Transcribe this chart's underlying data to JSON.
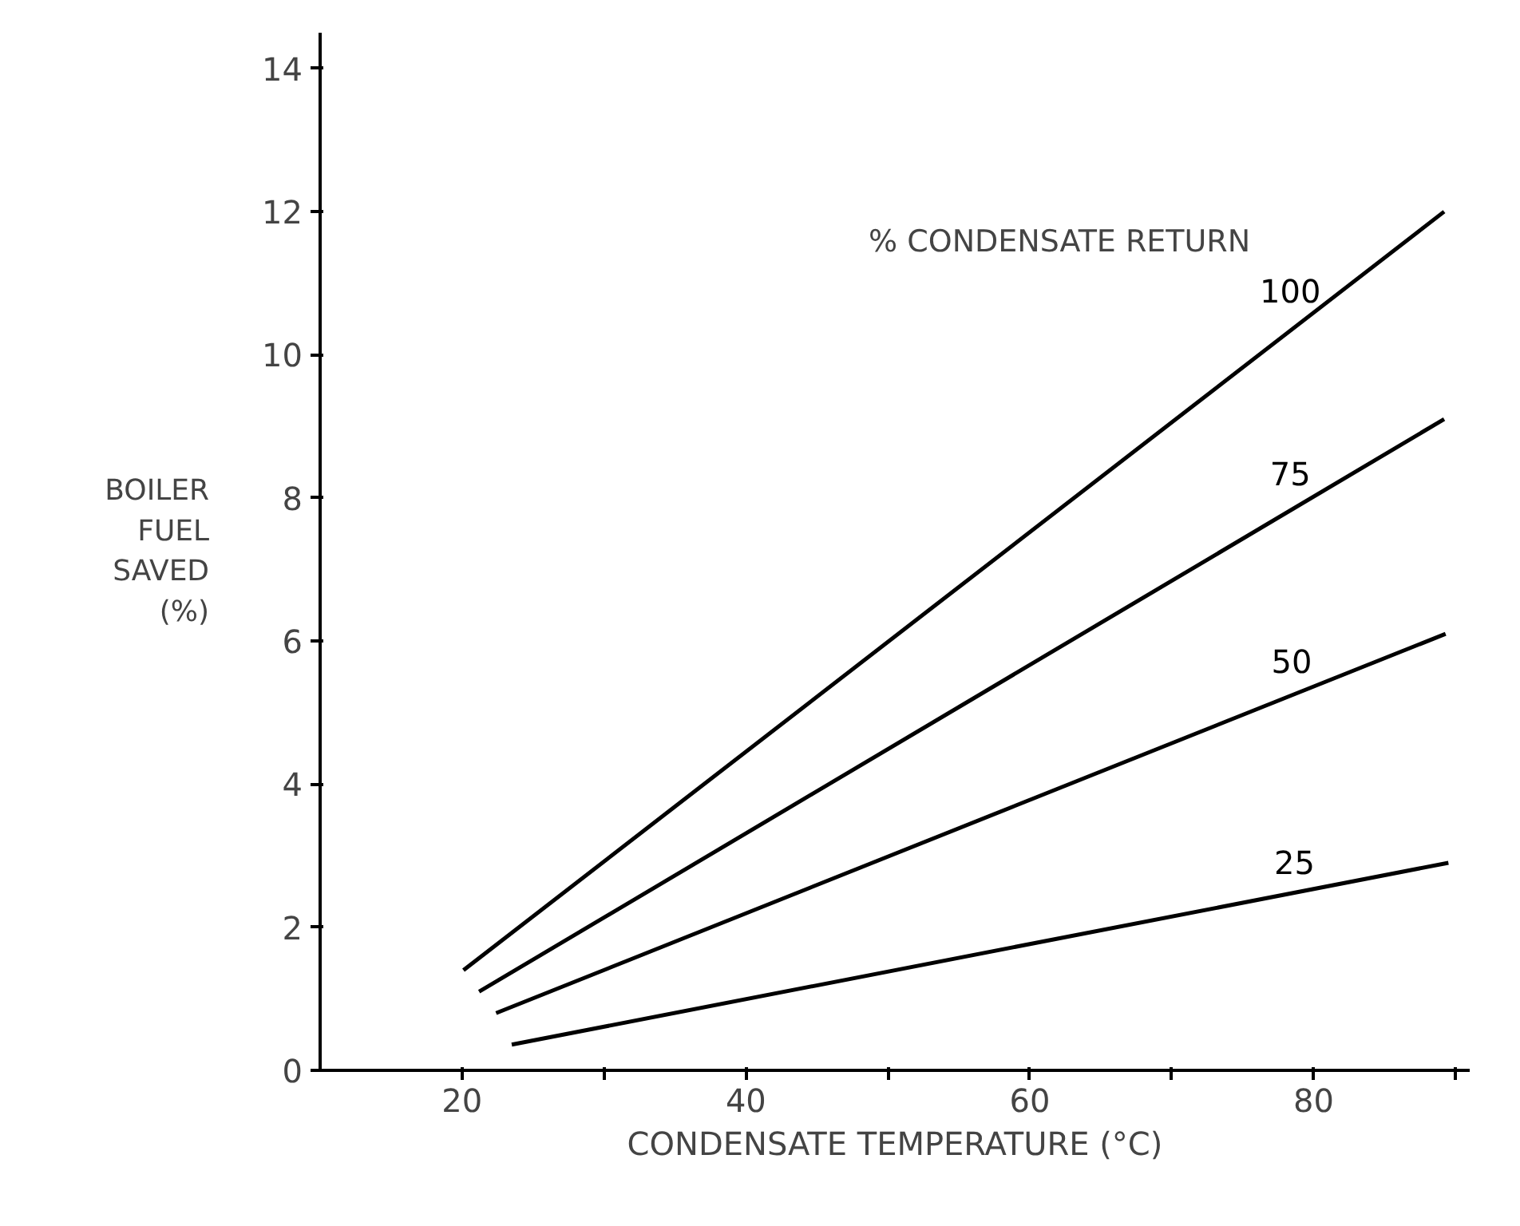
{
  "chart_data": {
    "type": "line",
    "xlabel": "CONDENSATE TEMPERATURE (°C)",
    "ylabel": "BOILER FUEL SAVED (%)",
    "annotations": [
      "% CONDENSATE RETURN"
    ],
    "xlim": [
      10,
      91
    ],
    "ylim": [
      0,
      14.5
    ],
    "xticks": [
      {
        "value": 20,
        "label": "20"
      },
      {
        "value": 30,
        "label": null
      },
      {
        "value": 40,
        "label": "40"
      },
      {
        "value": 50,
        "label": null
      },
      {
        "value": 60,
        "label": "60"
      },
      {
        "value": 70,
        "label": null
      },
      {
        "value": 80,
        "label": "80"
      },
      {
        "value": 90,
        "label": null
      }
    ],
    "yticks": [
      0,
      2,
      4,
      6,
      8,
      10,
      12,
      14
    ],
    "grid": false,
    "marker": "none",
    "line_style": "solid",
    "series": [
      {
        "name": "100",
        "color": "#000000",
        "x": [
          20.1,
          89.2
        ],
        "values": [
          1.4,
          12.0
        ]
      },
      {
        "name": "75",
        "color": "#000000",
        "x": [
          21.2,
          89.2
        ],
        "values": [
          1.1,
          9.1
        ]
      },
      {
        "name": "50",
        "color": "#000000",
        "x": [
          22.4,
          89.3
        ],
        "values": [
          0.8,
          6.1
        ]
      },
      {
        "name": "25",
        "color": "#000000",
        "x": [
          23.5,
          89.5
        ],
        "values": [
          0.36,
          2.9
        ]
      }
    ]
  }
}
